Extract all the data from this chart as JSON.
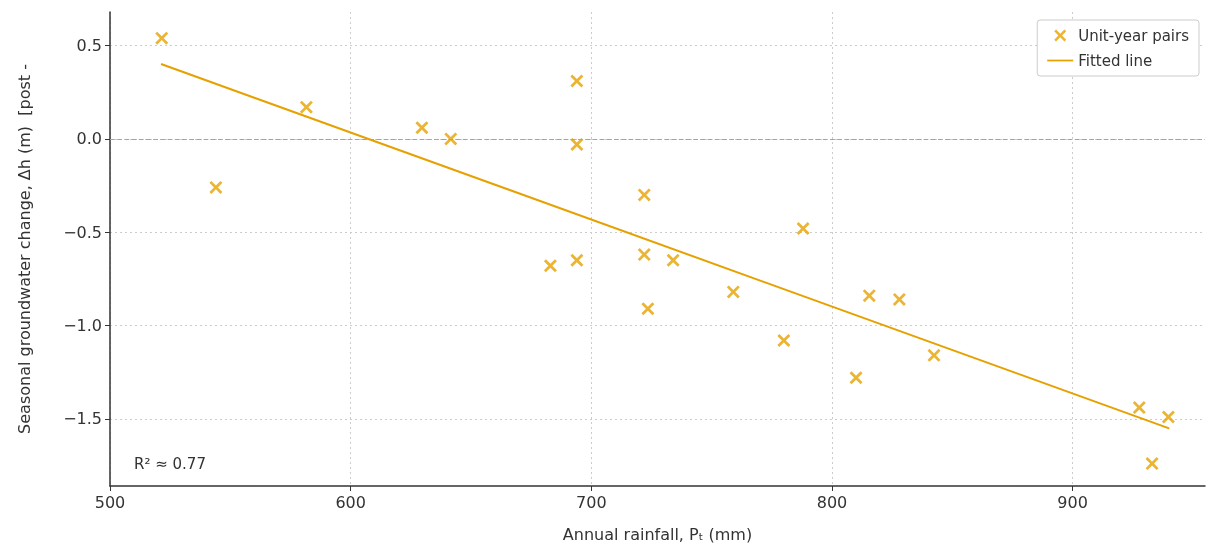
{
  "chart_data": {
    "type": "scatter",
    "xlabel": "Annual rainfall, Pₜ (mm)",
    "ylabel": "Seasonal groundwater change, Δh (m)  [post -",
    "annotations": [
      "R² ≈ 0.77"
    ],
    "xlim": [
      500,
      955
    ],
    "ylim": [
      -1.86,
      0.68
    ],
    "xticks": [
      500,
      600,
      700,
      800,
      900
    ],
    "yticks": [
      {
        "value": -1.5,
        "label": "−1.5"
      },
      {
        "value": -1,
        "label": "−1.0"
      },
      {
        "value": -0.5,
        "label": "−0.5"
      },
      {
        "value": 0,
        "label": "0.0"
      },
      {
        "value": 0.5,
        "label": "0.5"
      }
    ],
    "grid": true,
    "legend": "top right",
    "marker": "cross",
    "ref_lines": [
      {
        "axis": "y",
        "value": 0,
        "color": "#e6a100",
        "line_style": "dashed"
      }
    ],
    "series": [
      {
        "name": "Unit-year pairs",
        "color": "#e6a100",
        "x": [
          521.5,
          544,
          581.6,
          629.6,
          641.6,
          683,
          694,
          694,
          694,
          722,
          722,
          723.5,
          734,
          759,
          780,
          788,
          810,
          815.5,
          828,
          842.4,
          927.7,
          933,
          939.8
        ],
        "values": [
          0.54,
          -0.26,
          0.17,
          0.06,
          0.0,
          -0.68,
          0.31,
          -0.03,
          -0.65,
          -0.3,
          -0.62,
          -0.91,
          -0.65,
          -0.82,
          -1.08,
          -0.48,
          -1.28,
          -0.84,
          -0.86,
          -1.16,
          -1.44,
          -1.74,
          -1.49
        ]
      },
      {
        "name": "Fitted line",
        "type": "line",
        "marker": "none",
        "color": "#e6a100",
        "x": [
          521.5,
          939.8
        ],
        "values": [
          0.4,
          -1.55
        ]
      }
    ]
  }
}
